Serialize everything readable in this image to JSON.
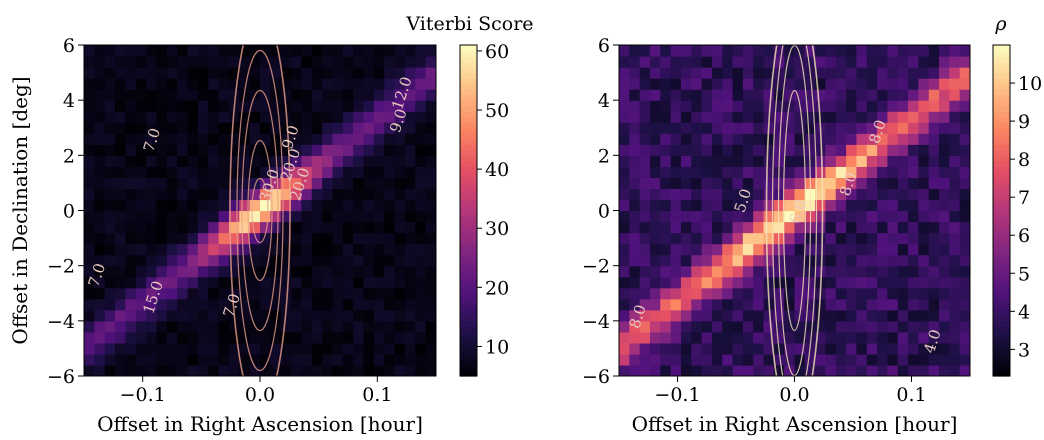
{
  "chart_data": [
    {
      "type": "heatmap",
      "title": "",
      "xlabel": "Offset in Right Ascension [hour]",
      "ylabel": "Offset in Declination [deg]",
      "xlim": [
        -0.15,
        0.15
      ],
      "ylim": [
        -6,
        6
      ],
      "xticks": [
        -0.1,
        0.0,
        0.1
      ],
      "xtick_labels": [
        "−0.1",
        "0.0",
        "0.1"
      ],
      "yticks": [
        -6,
        -4,
        -2,
        0,
        2,
        4,
        6
      ],
      "ytick_labels": [
        "−6",
        "−4",
        "−2",
        "0",
        "2",
        "4",
        "6"
      ],
      "colorbar": {
        "label": "Viterbi Score",
        "range": [
          5,
          61
        ],
        "ticks": [
          10,
          20,
          30,
          40,
          50,
          60
        ],
        "tick_labels": [
          "10",
          "20",
          "30",
          "40",
          "50",
          "60"
        ],
        "colormap": "magma"
      },
      "ridge": {
        "slope_deg_per_hour": 33.3,
        "background": 7,
        "peak": 61
      },
      "contour_labels": [
        {
          "text": "12.0",
          "x": 0.125,
          "y": 4.2
        },
        {
          "text": "7.0",
          "x": -0.088,
          "y": 2.5
        },
        {
          "text": "9.0",
          "x": 0.03,
          "y": 2.6
        },
        {
          "text": "9.0",
          "x": 0.122,
          "y": 3.2
        },
        {
          "text": "30.0",
          "x": 0.012,
          "y": 0.85
        },
        {
          "text": "20.0",
          "x": 0.03,
          "y": 1.6
        },
        {
          "text": "20.0",
          "x": 0.038,
          "y": 0.9
        },
        {
          "text": "7.0",
          "x": -0.135,
          "y": -2.4
        },
        {
          "text": "15.0",
          "x": -0.087,
          "y": -3.2
        },
        {
          "text": "7.0",
          "x": -0.02,
          "y": -3.5
        }
      ]
    },
    {
      "type": "heatmap",
      "title": "",
      "xlabel": "Offset in Right Ascension [hour]",
      "ylabel": "",
      "xlim": [
        -0.15,
        0.15
      ],
      "ylim": [
        -6,
        6
      ],
      "xticks": [
        -0.1,
        0.0,
        0.1
      ],
      "xtick_labels": [
        "−0.1",
        "0.0",
        "0.1"
      ],
      "yticks": [
        -6,
        -4,
        -2,
        0,
        2,
        4,
        6
      ],
      "ytick_labels": [
        "−6",
        "−4",
        "−2",
        "0",
        "2",
        "4",
        "6"
      ],
      "colorbar": {
        "label": "ρ",
        "range": [
          2.3,
          11
        ],
        "ticks": [
          3,
          4,
          5,
          6,
          7,
          8,
          9,
          10
        ],
        "tick_labels": [
          "3",
          "4",
          "5",
          "6",
          "7",
          "8",
          "9",
          "10"
        ],
        "colormap": "magma"
      },
      "ridge": {
        "slope_deg_per_hour": 33.3,
        "background": 3.8,
        "peak": 11
      },
      "contour_labels": [
        {
          "text": "8.0",
          "x": 0.075,
          "y": 2.8
        },
        {
          "text": "8.0",
          "x": 0.05,
          "y": 0.9
        },
        {
          "text": "5.0",
          "x": -0.04,
          "y": 0.3
        },
        {
          "text": "6.0",
          "x": 0.007,
          "y": -0.1
        },
        {
          "text": "4.0",
          "x": 0.122,
          "y": -4.8
        },
        {
          "text": "8.0",
          "x": -0.13,
          "y": -3.9
        }
      ]
    }
  ]
}
